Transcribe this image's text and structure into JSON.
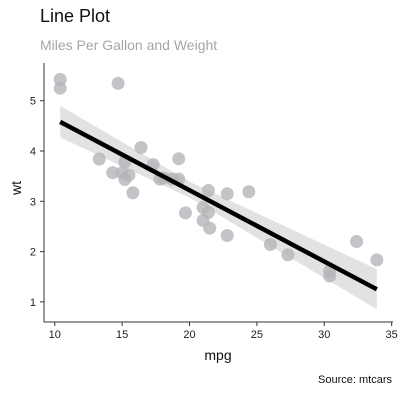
{
  "chart_data": {
    "type": "scatter",
    "title": "Line Plot",
    "subtitle": "Miles Per Gallon and Weight",
    "caption": "Source: mtcars",
    "xlabel": "mpg",
    "ylabel": "wt",
    "xlim": [
      9.2,
      35.1
    ],
    "ylim": [
      0.6,
      5.75
    ],
    "x_ticks": [
      10,
      15,
      20,
      25,
      30,
      35
    ],
    "y_ticks": [
      1,
      2,
      3,
      4,
      5
    ],
    "grid": false,
    "legend": "none",
    "colors": {
      "points": "#b3b3b9",
      "trend_line": "#000000",
      "confidence_band": "#e2e2e2",
      "axis": "#333333"
    },
    "points": [
      {
        "x": 21.0,
        "y": 2.62
      },
      {
        "x": 21.0,
        "y": 2.875
      },
      {
        "x": 22.8,
        "y": 2.32
      },
      {
        "x": 21.4,
        "y": 3.215
      },
      {
        "x": 18.7,
        "y": 3.44
      },
      {
        "x": 18.1,
        "y": 3.46
      },
      {
        "x": 14.3,
        "y": 3.57
      },
      {
        "x": 24.4,
        "y": 3.19
      },
      {
        "x": 22.8,
        "y": 3.15
      },
      {
        "x": 19.2,
        "y": 3.44
      },
      {
        "x": 17.8,
        "y": 3.44
      },
      {
        "x": 16.4,
        "y": 4.07
      },
      {
        "x": 17.3,
        "y": 3.73
      },
      {
        "x": 15.2,
        "y": 3.78
      },
      {
        "x": 10.4,
        "y": 5.25
      },
      {
        "x": 10.4,
        "y": 5.424
      },
      {
        "x": 14.7,
        "y": 5.345
      },
      {
        "x": 32.4,
        "y": 2.2
      },
      {
        "x": 30.4,
        "y": 1.615
      },
      {
        "x": 33.9,
        "y": 1.835
      },
      {
        "x": 21.5,
        "y": 2.465
      },
      {
        "x": 15.5,
        "y": 3.52
      },
      {
        "x": 15.2,
        "y": 3.435
      },
      {
        "x": 13.3,
        "y": 3.84
      },
      {
        "x": 19.2,
        "y": 3.845
      },
      {
        "x": 27.3,
        "y": 1.935
      },
      {
        "x": 26.0,
        "y": 2.14
      },
      {
        "x": 30.4,
        "y": 1.513
      },
      {
        "x": 15.8,
        "y": 3.17
      },
      {
        "x": 19.7,
        "y": 2.77
      },
      {
        "x": 15.0,
        "y": 3.57
      },
      {
        "x": 21.4,
        "y": 2.78
      }
    ],
    "trend_line": {
      "x": [
        10.4,
        33.9
      ],
      "y": [
        4.58,
        1.25
      ]
    },
    "confidence_band": {
      "x": [
        10.4,
        20.1,
        33.9
      ],
      "upper": [
        4.9,
        3.38,
        1.65
      ],
      "lower": [
        4.27,
        3.06,
        0.85
      ]
    }
  }
}
